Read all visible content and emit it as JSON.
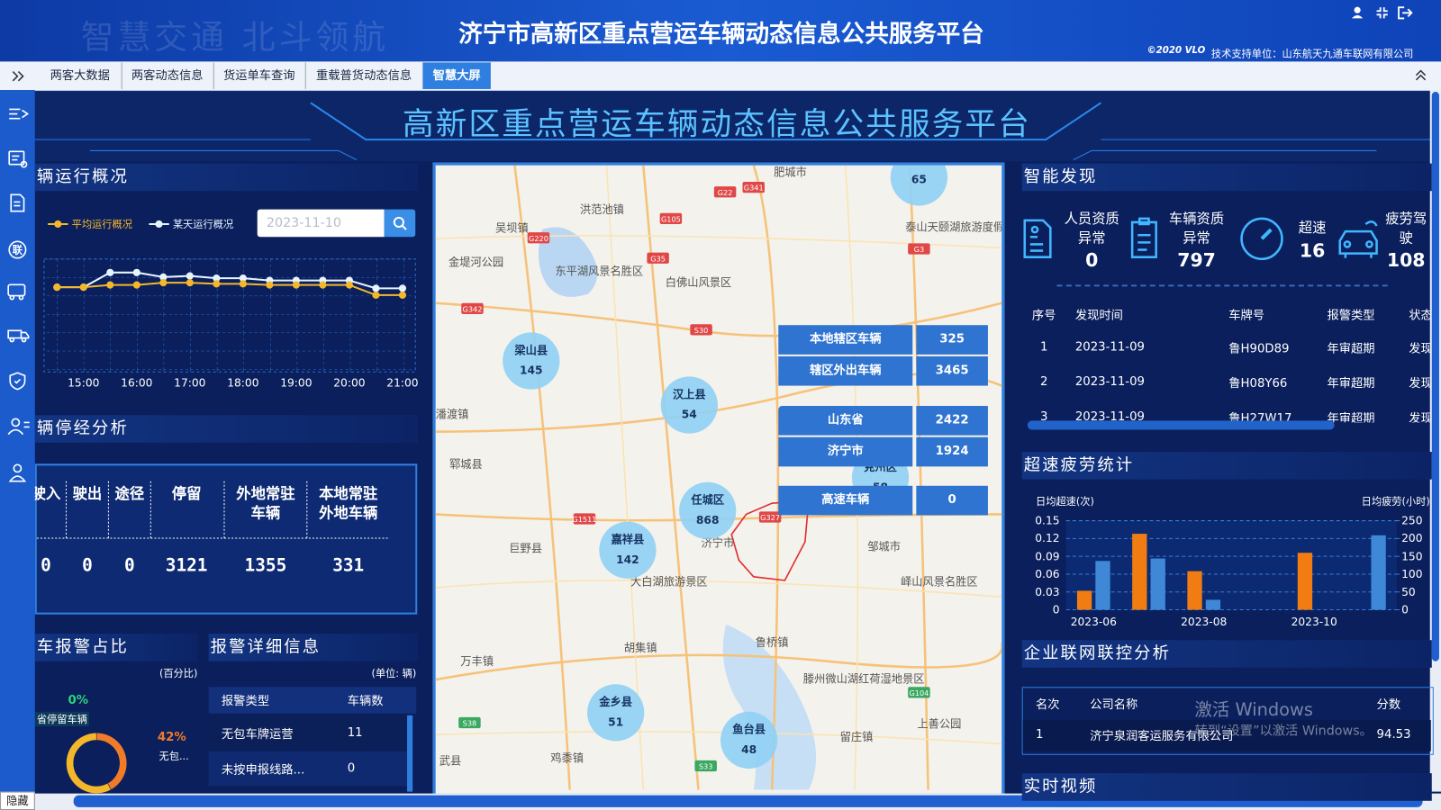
{
  "header": {
    "title": "济宁市高新区重点营运车辆动态信息公共服务平台",
    "watermark": "智慧交通 北斗领航",
    "copyright": "©2020 VLO",
    "support": "技术支持单位：山东航天九通车联网有限公司"
  },
  "nav": {
    "tabs": [
      "两客大数据",
      "两客动态信息",
      "货运单车查询",
      "重载普货动态信息",
      "智慧大屏"
    ],
    "active": 4
  },
  "sidebar": {
    "badge": "联"
  },
  "banner": {
    "title": "高新区重点营运车辆动态信息公共服务平台"
  },
  "run_overview": {
    "title": "辆运行概况",
    "date": "2023-11-10",
    "chart_data": {
      "type": "line",
      "categories": [
        null,
        "15:00",
        null,
        "16:00",
        null,
        "17:00",
        null,
        "18:00",
        null,
        "19:00",
        null,
        "20:00",
        null,
        "21:00"
      ],
      "series": [
        {
          "name": "平均运行概况",
          "color": "#f5b72a",
          "values": [
            7.5,
            7.5,
            7.7,
            7.7,
            7.9,
            7.9,
            7.8,
            7.8,
            7.7,
            7.7,
            7.7,
            7.7,
            6.8,
            6.8
          ]
        },
        {
          "name": "某天运行概况",
          "color": "#e6f4ff",
          "values": [
            7.5,
            7.5,
            8.8,
            8.8,
            8.4,
            8.5,
            8.3,
            8.3,
            8.1,
            8.1,
            8.1,
            8.1,
            7.4,
            7.4
          ]
        }
      ],
      "ylim": [
        0,
        10
      ],
      "grid": true
    }
  },
  "stop_analysis": {
    "title": "辆停经分析",
    "headers": [
      "驶入",
      "驶出",
      "途径",
      "停留",
      "外地常驻车辆",
      "本地常驻外地车辆"
    ],
    "values": [
      0,
      0,
      0,
      3121,
      1355,
      331
    ]
  },
  "alarm_ratio": {
    "title": "车报警占比",
    "unit": "(百分比)",
    "chart_data": {
      "type": "pie",
      "categories": [
        "无包...",
        "省停留车辆",
        null
      ],
      "values": [
        42,
        0,
        58
      ],
      "value_labels": [
        "42%",
        "0%",
        null
      ],
      "colors": [
        "#f07c2a",
        "#2fd37a",
        "#f5b72a"
      ]
    }
  },
  "alarm_detail": {
    "title": "报警详细信息",
    "unit": "(单位: 辆)",
    "headers": [
      "报警类型",
      "车辆数"
    ],
    "rows": [
      [
        "无包车牌运营",
        11
      ],
      [
        "未按申报线路...",
        0
      ]
    ]
  },
  "map": {
    "clusters": [
      {
        "name": "梁山县",
        "count": 145
      },
      {
        "name": "汉上县",
        "count": 54
      },
      {
        "name": "任城区",
        "count": 868
      },
      {
        "name": "嘉祥县",
        "count": 142
      },
      {
        "name": "金乡县",
        "count": 51
      },
      {
        "name": "鱼台县",
        "count": 48
      },
      {
        "name": null,
        "count": 65
      },
      {
        "name": "兖州区",
        "count": 58
      }
    ],
    "places": [
      "肥城市",
      "洪范池镇",
      "吴坝镇",
      "东平湖风景名胜区",
      "金堤河公园",
      "白佛山风景区",
      "泰山天颐湖旅游度假区",
      "潘渡镇",
      "郓城县",
      "巨野县",
      "济宁市",
      "邹城市",
      "大白湖旅游景区",
      "峄山风景名胜区",
      "胡集镇",
      "鲁桥镇",
      "万丰镇",
      "滕州微山湖红荷湿地景区",
      "上善公园",
      "留庄镇",
      "鸡黍镇",
      "武县"
    ],
    "roads": [
      "G341",
      "G22",
      "G105",
      "G220",
      "G35",
      "G342",
      "G3",
      "S30",
      "G327",
      "G1511",
      "S38",
      "S33",
      "G104"
    ],
    "stats": [
      {
        "label": "本地辖区车辆",
        "value": 325
      },
      {
        "label": "辖区外出车辆",
        "value": 3465
      },
      {
        "label": "山东省",
        "value": 2422
      },
      {
        "label": "济宁市",
        "value": 1924
      },
      {
        "label": "高速车辆",
        "value": 0
      }
    ]
  },
  "discovery": {
    "title": "智能发现",
    "stats": [
      {
        "label": "人员资质异常",
        "value": 0
      },
      {
        "label": "车辆资质异常",
        "value": 797
      },
      {
        "label": "超速",
        "value": 16
      },
      {
        "label": "疲劳驾驶",
        "value": 108
      }
    ],
    "headers": [
      "序号",
      "发现时间",
      "车牌号",
      "报警类型",
      "状态"
    ],
    "rows": [
      [
        1,
        "2023-11-09",
        "鲁H90D89",
        "年审超期",
        "发现"
      ],
      [
        2,
        "2023-11-09",
        "鲁H08Y66",
        "年审超期",
        "发现"
      ],
      [
        3,
        "2023-11-09",
        "鲁H27W17",
        "年审超期",
        "发现"
      ]
    ]
  },
  "speed_fatigue": {
    "title": "超速疲劳统计",
    "chart_data": {
      "type": "bar",
      "y_label": "日均超速(次)",
      "y2_label": "日均疲劳(小时)",
      "categories": [
        "2023-06",
        null,
        "2023-08",
        null,
        "2023-10",
        null
      ],
      "series": [
        {
          "color": "#f07c12",
          "values": [
            0.032,
            0.128,
            0.065,
            0,
            0.096,
            0
          ]
        },
        {
          "color": "#3f88d8",
          "axis": "y2",
          "values": [
            137,
            144,
            28,
            0,
            0,
            209
          ]
        }
      ],
      "ylim": [
        0,
        0.15
      ],
      "yticks": [
        0,
        0.03,
        0.06,
        0.09,
        0.12,
        0.15
      ],
      "y2lim": [
        0,
        250
      ],
      "y2ticks": [
        0,
        50,
        100,
        150,
        200,
        250
      ],
      "grid": true
    }
  },
  "enterprise": {
    "title": "企业联网联控分析",
    "headers": [
      "名次",
      "公司名称",
      "分数"
    ],
    "rows": [
      [
        1,
        "济宁泉润客运服务有限公司",
        94.53
      ]
    ]
  },
  "video": {
    "title": "实时视频"
  },
  "windows": {
    "line1": "激活 Windows",
    "line2": "转到“设置”以激活 Windows。"
  },
  "hide": "隐藏"
}
